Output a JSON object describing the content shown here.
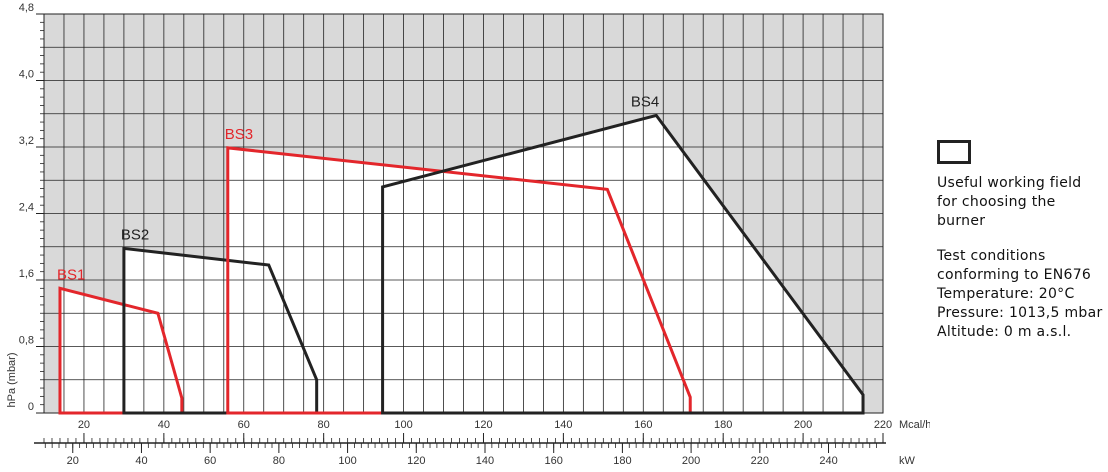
{
  "chart_data": {
    "type": "area",
    "xlabel": "Mcal/h",
    "ylabel": "hPa (mbar)",
    "x2label": "kW",
    "xlim": [
      10,
      220
    ],
    "xticks": [
      20,
      40,
      60,
      80,
      100,
      120,
      140,
      160,
      180,
      200,
      220
    ],
    "x2lim": [
      11.63,
      255.86
    ],
    "x2ticks": [
      20,
      40,
      60,
      80,
      100,
      120,
      140,
      160,
      180,
      200,
      220,
      240
    ],
    "ylim": [
      0,
      4.8
    ],
    "yticks": [
      0,
      {
        "value": 0.8,
        "label": "0,8"
      },
      {
        "value": 1.6,
        "label": "1,6"
      },
      {
        "value": 2.4,
        "label": "2,4"
      },
      {
        "value": 3.2,
        "label": "3,2"
      },
      {
        "value": 4.0,
        "label": "4,0"
      },
      {
        "value": 4.8,
        "label": "4,8"
      }
    ],
    "grid": true,
    "background": "#d9d9d9",
    "series": [
      {
        "name": "BS1",
        "color": "#e3262b",
        "x": [
          14,
          14,
          38.5,
          44.5,
          44.5
        ],
        "values": [
          0,
          1.5,
          1.2,
          0.18,
          0
        ]
      },
      {
        "name": "BS2",
        "color": "#222222",
        "x": [
          30,
          30,
          66.25,
          78.25,
          78.25
        ],
        "values": [
          0,
          1.98,
          1.78,
          0.4,
          0
        ]
      },
      {
        "name": "BS3",
        "color": "#e3262b",
        "x": [
          56,
          56,
          151,
          171.75,
          171.75
        ],
        "values": [
          0,
          3.19,
          2.69,
          0.19,
          0
        ]
      },
      {
        "name": "BS4",
        "color": "#222222",
        "x": [
          94.75,
          94.75,
          163.25,
          215,
          215
        ],
        "values": [
          0,
          2.72,
          3.58,
          0.22,
          0
        ]
      }
    ],
    "legend": {
      "label": "Useful working field for choosing the burner",
      "notes": [
        "Test conditions conforming to EN676",
        "Temperature: 20°C",
        "Pressure: 1013,5 mbar",
        "Altitude: 0 m a.s.l."
      ]
    }
  }
}
